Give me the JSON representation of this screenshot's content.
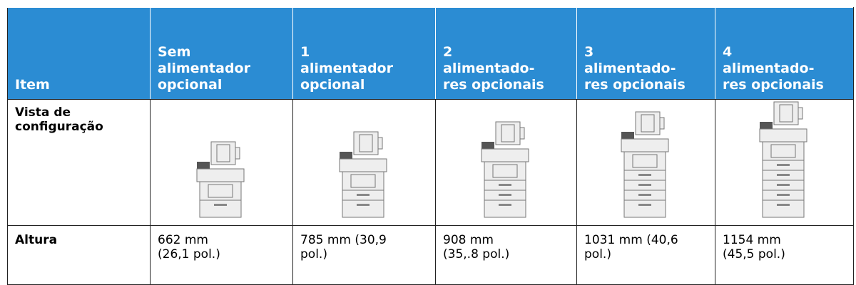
{
  "table": {
    "header": [
      [
        "Item"
      ],
      [
        "Sem",
        "alimentador",
        "opcional"
      ],
      [
        "1",
        "alimentador",
        "opcional"
      ],
      [
        "2",
        "alimentado-",
        "res opcionais"
      ],
      [
        "3",
        "alimentado-",
        "res opcionais"
      ],
      [
        "4",
        "alimentado-",
        "res opcionais"
      ]
    ],
    "rows": [
      [
        [
          "Vista de",
          "configuração"
        ]
      ],
      [
        [
          "Altura"
        ],
        [
          "662 mm",
          "(26,1 pol.)"
        ],
        [
          "785 mm (30,9",
          "pol.)"
        ],
        [
          "908 mm",
          "(35,.8 pol.)"
        ],
        [
          "1031 mm (40,6",
          "pol.)"
        ],
        [
          "1154 mm",
          "(45,5 pol.)"
        ]
      ]
    ]
  }
}
